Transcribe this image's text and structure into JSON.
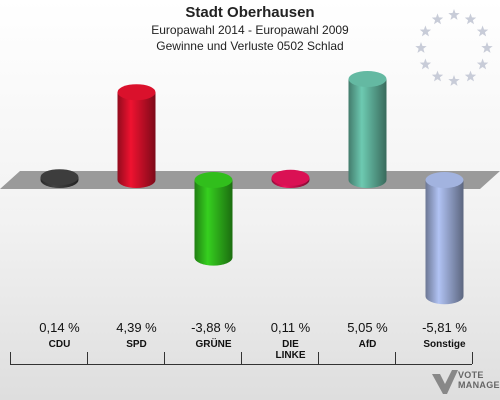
{
  "header": {
    "title": "Stadt Oberhausen",
    "subtitle": "Europawahl 2014 - Europawahl 2009",
    "caption": "Gewinne und Verluste 0502 Schlad"
  },
  "chart_data": {
    "type": "bar",
    "categories": [
      "CDU",
      "SPD",
      "GRÜNE",
      "DIE LINKE",
      "AfD",
      "Sonstige"
    ],
    "category_lines": [
      [
        "CDU"
      ],
      [
        "SPD"
      ],
      [
        "GRÜNE"
      ],
      [
        "DIE",
        "LINKE"
      ],
      [
        "AfD"
      ],
      [
        "Sonstige"
      ]
    ],
    "values": [
      0.14,
      4.39,
      -3.88,
      0.11,
      5.05,
      -5.81
    ],
    "value_labels": [
      "0,14 %",
      "4,39 %",
      "-3,88 %",
      "0,11 %",
      "5,05 %",
      "-5,81 %"
    ],
    "colors": [
      "#3a3a3a",
      "#d0102a",
      "#2fb51b",
      "#d01050",
      "#5fb09a",
      "#9aaad4"
    ],
    "ylim": [
      -6,
      6
    ]
  },
  "logo": {
    "line1": "VOTE",
    "line2": "MANAGER"
  },
  "icons": {
    "emblem": "eu-stars-icon",
    "logo": "vote-manager-logo-icon"
  }
}
